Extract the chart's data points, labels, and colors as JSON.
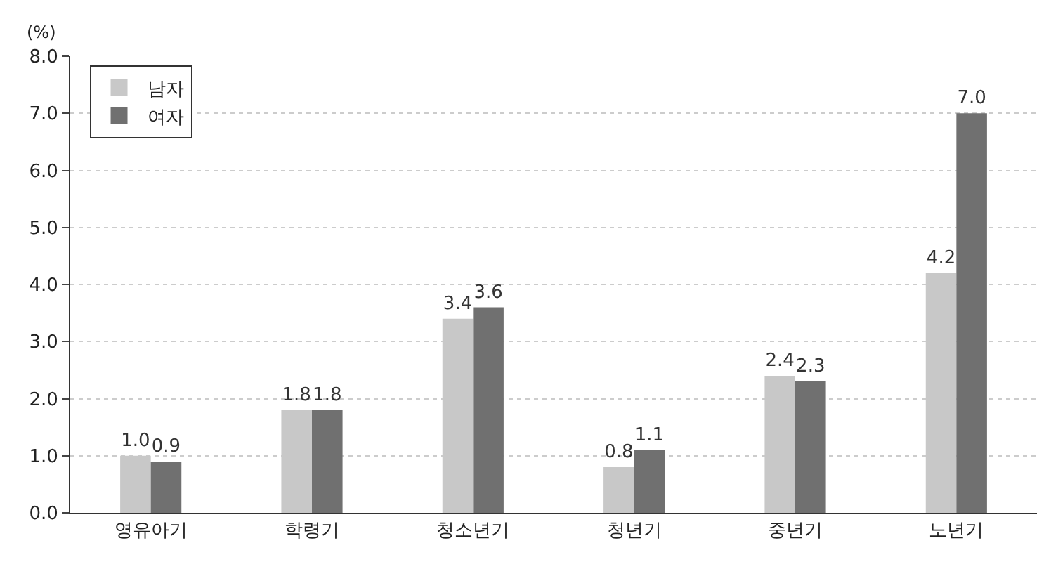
{
  "chart_data": {
    "type": "bar",
    "ylabel": "(%)",
    "categories": [
      "영유아기",
      "학령기",
      "청소년기",
      "청년기",
      "중년기",
      "노년기"
    ],
    "series": [
      {
        "name": "남자",
        "color": "#c8c8c8",
        "values": [
          1.0,
          1.8,
          3.4,
          0.8,
          2.4,
          4.2
        ],
        "value_labels": [
          "1.0",
          "1.8",
          "3.4",
          "0.8",
          "2.4",
          "4.2"
        ]
      },
      {
        "name": "여자",
        "color": "#707070",
        "values": [
          0.9,
          1.8,
          3.6,
          1.1,
          2.3,
          7.0
        ],
        "value_labels": [
          "0.9",
          "1.8",
          "3.6",
          "1.1",
          "2.3",
          "7.0"
        ]
      }
    ],
    "ylim": [
      0,
      8
    ],
    "yticks": [
      {
        "value": 0,
        "label": "0.0"
      },
      {
        "value": 1,
        "label": "1.0"
      },
      {
        "value": 2,
        "label": "2.0"
      },
      {
        "value": 3,
        "label": "3.0"
      },
      {
        "value": 4,
        "label": "4.0"
      },
      {
        "value": 5,
        "label": "5.0"
      },
      {
        "value": 6,
        "label": "6.0"
      },
      {
        "value": 7,
        "label": "7.0"
      },
      {
        "value": 8,
        "label": "8.0"
      }
    ],
    "grid": "y",
    "legend": "top left"
  }
}
